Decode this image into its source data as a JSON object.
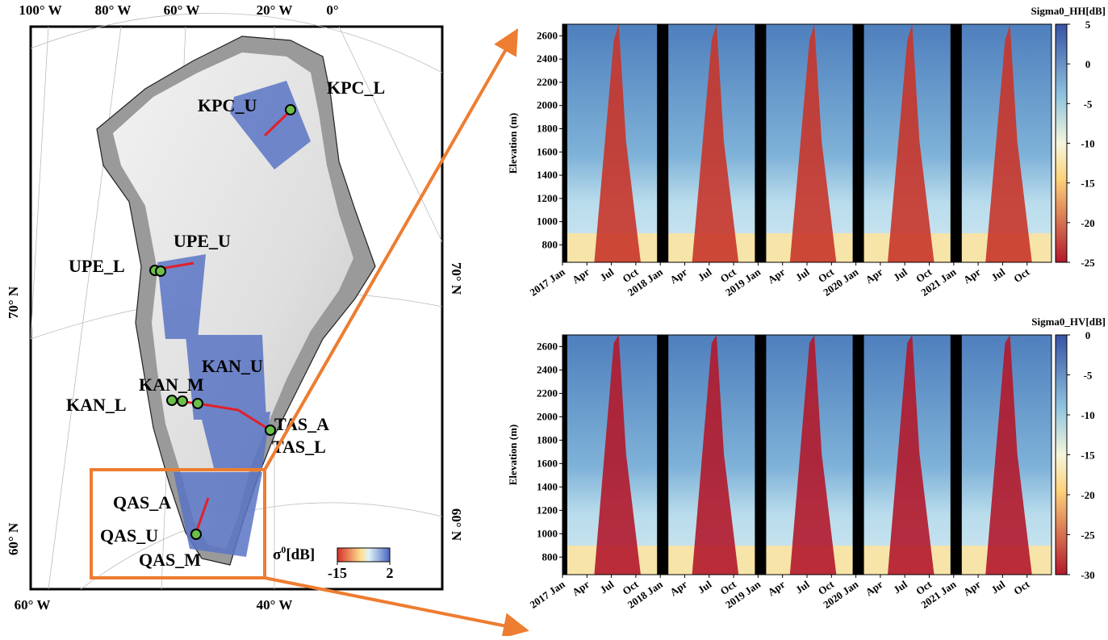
{
  "map": {
    "lon_labels_top": [
      "100° W",
      "80° W",
      "60° W",
      "20° W",
      "0°"
    ],
    "lon_labels_bottom": [
      "60° W",
      "40° W"
    ],
    "lat_labels_left": [
      "70° N",
      "60° N"
    ],
    "lat_labels_right": [
      "70° N",
      "60° N"
    ],
    "sites": [
      "KPC_U",
      "KPC_L",
      "UPE_U",
      "UPE_L",
      "KAN_U",
      "KAN_M",
      "KAN_L",
      "TAS_A",
      "TAS_L",
      "QAS_A",
      "QAS_U",
      "QAS_M"
    ],
    "colorbar": {
      "symbol": "σ",
      "superscript": "0",
      "unit": "[dB]",
      "ticks": [
        -15,
        2
      ],
      "lim": [
        -15,
        2
      ]
    }
  },
  "chart_data": [
    {
      "type": "heatmap",
      "colorbar_title": "Sigma0_HH[dB]",
      "y_label": "Elevation (m)",
      "xticks": [
        "2017 Jan",
        "Apr",
        "Jul",
        "Oct",
        "2018 Jan",
        "Apr",
        "Jul",
        "Oct",
        "2019 Jan",
        "Apr",
        "Jul",
        "Oct",
        "2020 Jan",
        "Apr",
        "Jul",
        "Oct",
        "2021 Jan",
        "Apr",
        "Jul",
        "Oct"
      ],
      "ylim": [
        650,
        2700
      ],
      "yticks": [
        800,
        1000,
        1200,
        1400,
        1600,
        1800,
        2000,
        2200,
        2400,
        2600
      ],
      "clim": [
        -25,
        5
      ],
      "cticks": [
        5,
        0,
        -5,
        -10,
        -15,
        -20,
        -25
      ]
    },
    {
      "type": "heatmap",
      "colorbar_title": "Sigma0_HV[dB]",
      "y_label": "Elevation (m)",
      "xticks": [
        "2017 Jan",
        "Apr",
        "Jul",
        "Oct",
        "2018 Jan",
        "Apr",
        "Jul",
        "Oct",
        "2019 Jan",
        "Apr",
        "Jul",
        "Oct",
        "2020 Jan",
        "Apr",
        "Jul",
        "Oct",
        "2021 Jan",
        "Apr",
        "Jul",
        "Oct"
      ],
      "ylim": [
        650,
        2700
      ],
      "yticks": [
        800,
        1000,
        1200,
        1400,
        1600,
        1800,
        2000,
        2200,
        2400,
        2600
      ],
      "clim": [
        -30,
        0
      ],
      "cticks": [
        0,
        -5,
        -10,
        -15,
        -20,
        -25,
        -30
      ]
    }
  ]
}
